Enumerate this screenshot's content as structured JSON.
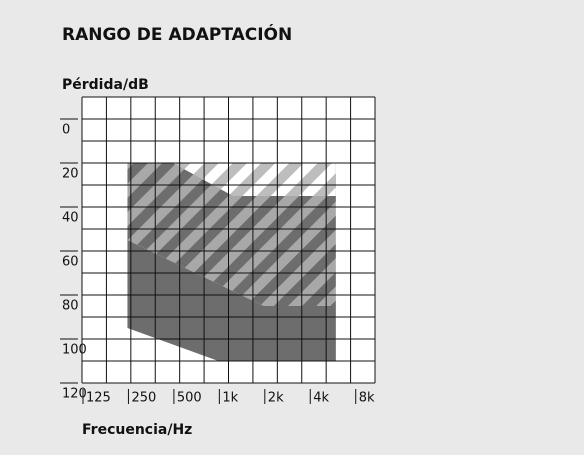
{
  "chart_data": {
    "type": "area",
    "title": "RANGO DE ADAPTACIÓN",
    "y_label": "Pérdida/dB",
    "x_label": "Frecuencia/Hz",
    "x_log": true,
    "y_inverted": true,
    "xlim": [
      125,
      10900
    ],
    "ylim": [
      -10,
      120
    ],
    "xticks": [
      125,
      250,
      500,
      {
        "value": 1000,
        "label": "1k"
      },
      {
        "value": 2000,
        "label": "2k"
      },
      {
        "value": 4000,
        "label": "4k"
      },
      {
        "value": 8000,
        "label": "8k"
      }
    ],
    "yticks": [
      0,
      20,
      40,
      60,
      80,
      100,
      120
    ],
    "grid": true,
    "series": [
      {
        "color": "#6d6d6d",
        "stripe": "#a8a8a8",
        "x": [
          250,
          6000,
          6000,
          2000,
          250
        ],
        "values": [
          20,
          20,
          85,
          85,
          55
        ]
      },
      {
        "color": "#ffffff",
        "stripe": "#bdbdbd",
        "x": [
          500,
          6000,
          6000,
          1250
        ],
        "values": [
          20,
          20,
          35,
          35
        ]
      },
      {
        "color": "#6d6d6d",
        "x": [
          250,
          2000,
          6000,
          6000,
          1000,
          250
        ],
        "values": [
          55,
          85,
          85,
          110,
          110,
          95
        ]
      }
    ]
  }
}
